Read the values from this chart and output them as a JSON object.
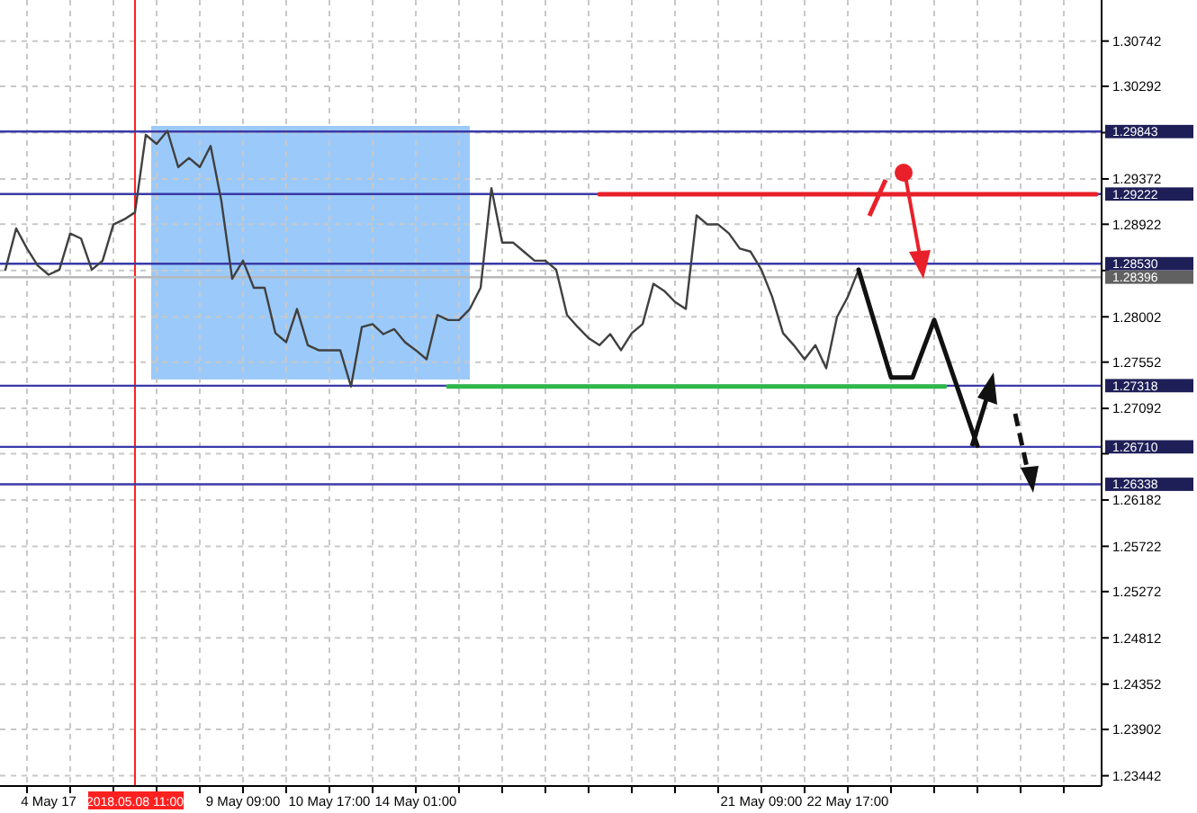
{
  "chart_data": {
    "type": "line",
    "categories": [
      null,
      null,
      null,
      null,
      "4 May 17",
      null,
      null,
      null,
      null,
      null,
      null,
      null,
      "2018.05.08 11:00",
      null,
      null,
      null,
      null,
      null,
      null,
      null,
      null,
      null,
      "9 May 09:00",
      null,
      null,
      null,
      null,
      null,
      null,
      null,
      "10 May 17:00",
      null,
      null,
      null,
      null,
      null,
      null,
      null,
      "14 May 01:00",
      null,
      null,
      null,
      null,
      null,
      null,
      null,
      null,
      null,
      null,
      null,
      null,
      null,
      null,
      null,
      null,
      null,
      null,
      null,
      null,
      null,
      null,
      null,
      null,
      null,
      null,
      null,
      null,
      null,
      null,
      null,
      "21 May 09:00",
      null,
      null,
      null,
      null,
      null,
      null,
      null,
      "22 May 17:00",
      null,
      null,
      null,
      null,
      null,
      null,
      null,
      null,
      null,
      null,
      null,
      null,
      null,
      null,
      null,
      null,
      null,
      null,
      null,
      null,
      null,
      null,
      null
    ],
    "series": [
      {
        "color": "#404040",
        "values": [
          1.2847,
          1.2888,
          1.2868,
          1.2851,
          1.2842,
          1.2847,
          1.2883,
          1.2878,
          1.2847,
          1.2856,
          1.2892,
          1.2897,
          1.2904,
          1.2981,
          1.2972,
          1.2985,
          1.2949,
          1.2958,
          1.2949,
          1.297,
          1.2915,
          1.2838,
          1.2856,
          1.2829,
          1.2829,
          1.2784,
          1.2775,
          1.2808,
          1.2772,
          1.2767,
          1.2767,
          1.2767,
          1.2731,
          1.279,
          1.2793,
          1.2783,
          1.2788,
          1.2775,
          1.2767,
          1.2758,
          1.2802,
          1.2797,
          1.2797,
          1.2808,
          1.2829,
          1.2928,
          1.2874,
          1.2874,
          1.2865,
          1.2856,
          1.2856,
          1.2847,
          1.2802,
          1.279,
          1.2779,
          1.2772,
          1.2783,
          1.2767,
          1.2784,
          1.2793,
          1.2833,
          1.2826,
          1.2815,
          1.2808,
          1.2901,
          1.2892,
          1.2892,
          1.2883,
          1.2868,
          1.2865,
          1.2847,
          1.282,
          1.2784,
          1.2772,
          1.2758,
          1.2772,
          1.2749,
          1.28,
          1.282,
          1.2847,
          null,
          null,
          null,
          null,
          null,
          null,
          null,
          null,
          null,
          null,
          null,
          null,
          null,
          null,
          null,
          null,
          null,
          null,
          null,
          null,
          null,
          null
        ]
      },
      {
        "type": "line",
        "color": "#111111",
        "values": [
          null,
          null,
          null,
          null,
          null,
          null,
          null,
          null,
          null,
          null,
          null,
          null,
          null,
          null,
          null,
          null,
          null,
          null,
          null,
          null,
          null,
          null,
          null,
          null,
          null,
          null,
          null,
          null,
          null,
          null,
          null,
          null,
          null,
          null,
          null,
          null,
          null,
          null,
          null,
          null,
          null,
          null,
          null,
          null,
          null,
          null,
          null,
          null,
          null,
          null,
          null,
          null,
          null,
          null,
          null,
          null,
          null,
          null,
          null,
          null,
          null,
          null,
          null,
          null,
          null,
          null,
          null,
          null,
          null,
          null,
          null,
          null,
          null,
          null,
          null,
          null,
          null,
          null,
          null,
          1.2847,
          null,
          null,
          1.274,
          null,
          1.274,
          null,
          1.2797,
          null,
          null,
          null,
          1.2672,
          null,
          null,
          null,
          null,
          null,
          null,
          null,
          null,
          null,
          null,
          null
        ]
      },
      {
        "type": "line",
        "color": "#e8202a",
        "values": [
          null,
          null,
          null,
          null,
          null,
          null,
          null,
          null,
          null,
          null,
          null,
          null,
          null,
          null,
          null,
          null,
          null,
          null,
          null,
          null,
          null,
          null,
          null,
          null,
          null,
          null,
          null,
          null,
          null,
          null,
          null,
          null,
          null,
          null,
          null,
          null,
          null,
          null,
          null,
          null,
          null,
          null,
          null,
          null,
          null,
          null,
          null,
          null,
          null,
          null,
          null,
          null,
          null,
          null,
          null,
          1.2922,
          1.2922,
          1.2922,
          1.2922,
          1.2922,
          1.2922,
          1.2922,
          1.2922,
          1.2922,
          1.2922,
          1.2922,
          1.2922,
          1.2922,
          1.2922,
          1.2922,
          1.2922,
          1.2922,
          1.2922,
          1.2922,
          1.2922,
          1.2922,
          1.2922,
          1.2922,
          1.2922,
          1.2922,
          1.2922,
          1.2922,
          1.2922,
          1.2922,
          1.2922,
          1.2922,
          1.2922,
          1.2922,
          1.2922,
          1.2922,
          1.2922,
          1.2922,
          1.2922,
          1.2922,
          1.2922,
          1.2922,
          1.2922,
          1.2922,
          1.2922,
          1.2922,
          1.2922,
          1.2922
        ]
      },
      {
        "type": "line",
        "color": "#2eb84a",
        "values": [
          null,
          null,
          null,
          null,
          null,
          null,
          null,
          null,
          null,
          null,
          null,
          null,
          null,
          null,
          null,
          null,
          null,
          null,
          null,
          null,
          null,
          null,
          null,
          null,
          null,
          null,
          null,
          null,
          null,
          null,
          null,
          null,
          null,
          null,
          null,
          null,
          null,
          null,
          null,
          null,
          null,
          1.2731,
          1.2731,
          1.2731,
          1.2731,
          1.2731,
          1.2731,
          1.2731,
          1.2731,
          1.2731,
          1.2731,
          1.2731,
          1.2731,
          1.2731,
          1.2731,
          1.2731,
          1.2731,
          1.2731,
          1.2731,
          1.2731,
          1.2731,
          1.2731,
          1.2731,
          1.2731,
          1.2731,
          1.2731,
          1.2731,
          1.2731,
          1.2731,
          1.2731,
          1.2731,
          1.2731,
          1.2731,
          1.2731,
          1.2731,
          1.2731,
          1.2731,
          1.2731,
          1.2731,
          1.2731,
          1.2731,
          1.2731,
          1.2731,
          1.2731,
          1.2731,
          1.2731,
          1.2731,
          1.2731,
          null,
          null,
          null,
          null,
          null,
          null,
          null,
          null,
          null,
          null,
          null,
          null,
          null,
          null
        ]
      }
    ],
    "ylim": [
      1.2334,
      1.3115
    ],
    "yticks": [
      1.30742,
      1.30292,
      {
        "value": 1.29832,
        "label": null
      },
      1.29372,
      1.28922,
      {
        "value": 1.28462,
        "label": null
      },
      1.28002,
      1.27552,
      1.27092,
      {
        "value": 1.26642,
        "label": null
      },
      1.26182,
      1.25722,
      1.25272,
      1.24812,
      1.24352,
      1.23902,
      1.23442
    ],
    "grid": true,
    "line_style": "solid",
    "ref_lines": [
      {
        "axis": "x",
        "value": "2018.05.08 11:00",
        "color": "#ff2020"
      },
      {
        "axis": "y",
        "value": 1.28396,
        "label": "1.28396",
        "color": "#b8b8b8"
      },
      {
        "axis": "y",
        "value": 1.29843,
        "label": "1.29843",
        "color": "#3a3aa8"
      },
      {
        "axis": "y",
        "value": 1.29222,
        "label": "1.29222",
        "color": "#3a3aa8"
      },
      {
        "axis": "y",
        "value": 1.2853,
        "label": "1.28530",
        "color": "#3a3aa8"
      },
      {
        "axis": "y",
        "value": 1.27318,
        "label": "1.27318",
        "color": "#3a3aa8"
      },
      {
        "axis": "y",
        "value": 1.2671,
        "label": "1.26710",
        "color": "#3a3aa8"
      },
      {
        "axis": "y",
        "value": 1.26338,
        "label": "1.26338",
        "color": "#3a3aa8"
      }
    ]
  }
}
